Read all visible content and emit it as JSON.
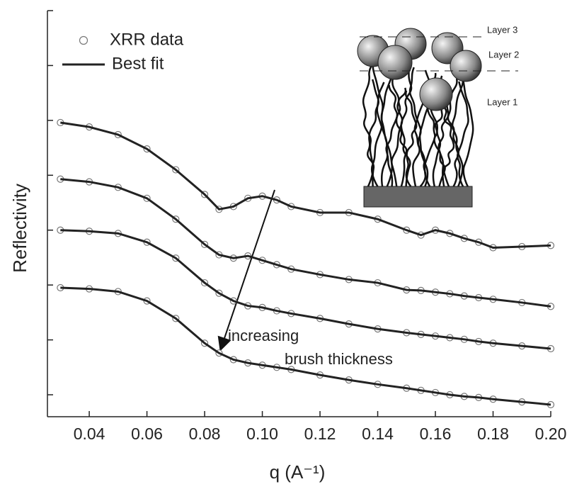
{
  "chart_data": {
    "type": "line",
    "xlabel": "q (A⁻¹)",
    "ylabel": "Reflectivity",
    "x": [
      0.03,
      0.04,
      0.05,
      0.06,
      0.07,
      0.08,
      0.085,
      0.09,
      0.095,
      0.1,
      0.105,
      0.11,
      0.12,
      0.13,
      0.14,
      0.15,
      0.155,
      0.16,
      0.165,
      0.17,
      0.175,
      0.18,
      0.19,
      0.2
    ],
    "series": [
      {
        "values": [
          4.96,
          4.88,
          4.74,
          4.48,
          4.1,
          3.65,
          3.38,
          3.43,
          3.58,
          3.62,
          3.55,
          3.43,
          3.32,
          3.32,
          3.2,
          3.0,
          2.91,
          3.0,
          2.94,
          2.85,
          2.78,
          2.68,
          2.7,
          2.72
        ]
      },
      {
        "values": [
          3.93,
          3.88,
          3.78,
          3.58,
          3.2,
          2.74,
          2.55,
          2.49,
          2.53,
          2.45,
          2.37,
          2.29,
          2.19,
          2.1,
          2.04,
          1.91,
          1.9,
          1.87,
          1.84,
          1.8,
          1.77,
          1.74,
          1.68,
          1.61
        ]
      },
      {
        "values": [
          3.0,
          2.98,
          2.94,
          2.78,
          2.49,
          2.04,
          1.85,
          1.71,
          1.62,
          1.59,
          1.53,
          1.48,
          1.39,
          1.29,
          1.2,
          1.13,
          1.1,
          1.07,
          1.04,
          1.01,
          0.97,
          0.94,
          0.89,
          0.84
        ]
      },
      {
        "values": [
          1.95,
          1.93,
          1.88,
          1.71,
          1.39,
          0.94,
          0.76,
          0.64,
          0.58,
          0.54,
          0.5,
          0.46,
          0.36,
          0.27,
          0.19,
          0.12,
          0.08,
          0.04,
          0.0,
          -0.03,
          -0.05,
          -0.08,
          -0.13,
          -0.18
        ]
      }
    ],
    "legend": [
      {
        "name": "XRR data",
        "marker": "circle",
        "color": "#777777"
      },
      {
        "name": "Best fit",
        "marker": "line",
        "color": "#222222"
      }
    ],
    "xlim": [
      0.0255,
      0.2
    ],
    "xticks": [
      0.04,
      0.06,
      0.08,
      {
        "value": 0.1,
        "label": "0.10"
      },
      0.12,
      0.14,
      0.16,
      0.18,
      {
        "value": 0.2,
        "label": "0.20"
      }
    ],
    "ylim": [
      -0.4,
      7
    ],
    "yticks": [
      0,
      1,
      2,
      3,
      4,
      5,
      6,
      7
    ],
    "annotation": [
      "increasing",
      "brush thickness"
    ],
    "inset_labels": [
      "Layer 3",
      "Layer 2",
      "Layer 1"
    ]
  }
}
